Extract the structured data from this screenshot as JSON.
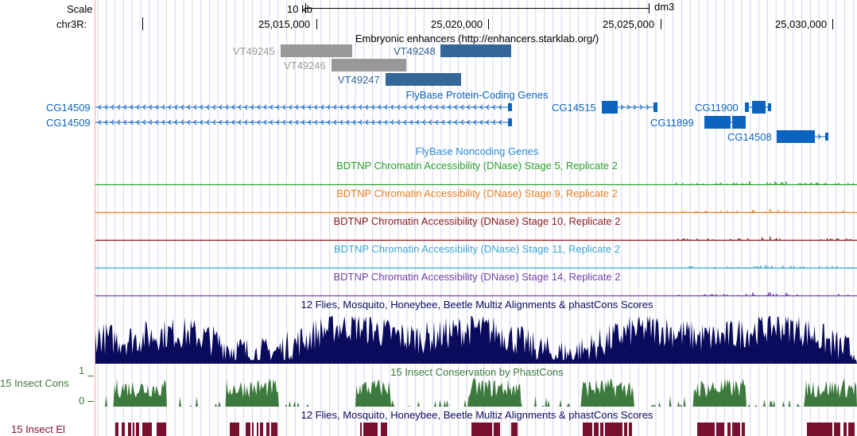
{
  "genome": "dm3",
  "chrom_label": "chr3R:",
  "scale": {
    "label": "Scale",
    "value": "10 kb"
  },
  "ruler_ticks": [
    "25,015,000",
    "25,020,000",
    "25,025,000",
    "25,030,000"
  ],
  "tracks": {
    "enhancers": {
      "title": "Embryonic enhancers (http://enhancers.starklab.org/)",
      "items": [
        {
          "name": "VT49245",
          "color": "#999999"
        },
        {
          "name": "VT49246",
          "color": "#999999"
        },
        {
          "name": "VT49248",
          "color": "#336699"
        },
        {
          "name": "VT49247",
          "color": "#336699"
        }
      ]
    },
    "flybase_coding": {
      "title": "FlyBase Protein-Coding Genes",
      "color": "#0c64c0",
      "genes": [
        "CG14509",
        "CG14509",
        "CG14515",
        "CG11900",
        "CG11899",
        "CG14508"
      ]
    },
    "flybase_noncoding": {
      "title": "FlyBase Noncoding Genes",
      "color": "#2e8bd6"
    },
    "dnase": [
      {
        "title": "BDTNP Chromatin Accessibility (DNase) Stage 5, Replicate 2",
        "color": "#2ca02c"
      },
      {
        "title": "BDTNP Chromatin Accessibility (DNase) Stage 9, Replicate 2",
        "color": "#f07f20"
      },
      {
        "title": "BDTNP Chromatin Accessibility (DNase) Stage 10, Replicate 2",
        "color": "#8b1a1a"
      },
      {
        "title": "BDTNP Chromatin Accessibility (DNase) Stage 11, Replicate 2",
        "color": "#3aa7d6"
      },
      {
        "title": "BDTNP Chromatin Accessibility (DNase) Stage 14, Replicate 2",
        "color": "#7440a8"
      }
    ],
    "multiz": {
      "title": "12 Flies, Mosquito, Honeybee, Beetle Multiz Alignments & phastCons Scores",
      "color": "#0b0b5e"
    },
    "phastcons": {
      "title": "15 Insect Conservation by PhastCons",
      "side_label": "15 Insect Cons",
      "ymax": "1",
      "ymin": "0",
      "color": "#3d7a3d"
    },
    "elements": {
      "title": "12 Flies, Mosquito, Honeybee, Beetle Multiz Alignments & phastCons Scores",
      "side_label": "15 Insect El",
      "color": "#7a1030"
    }
  }
}
